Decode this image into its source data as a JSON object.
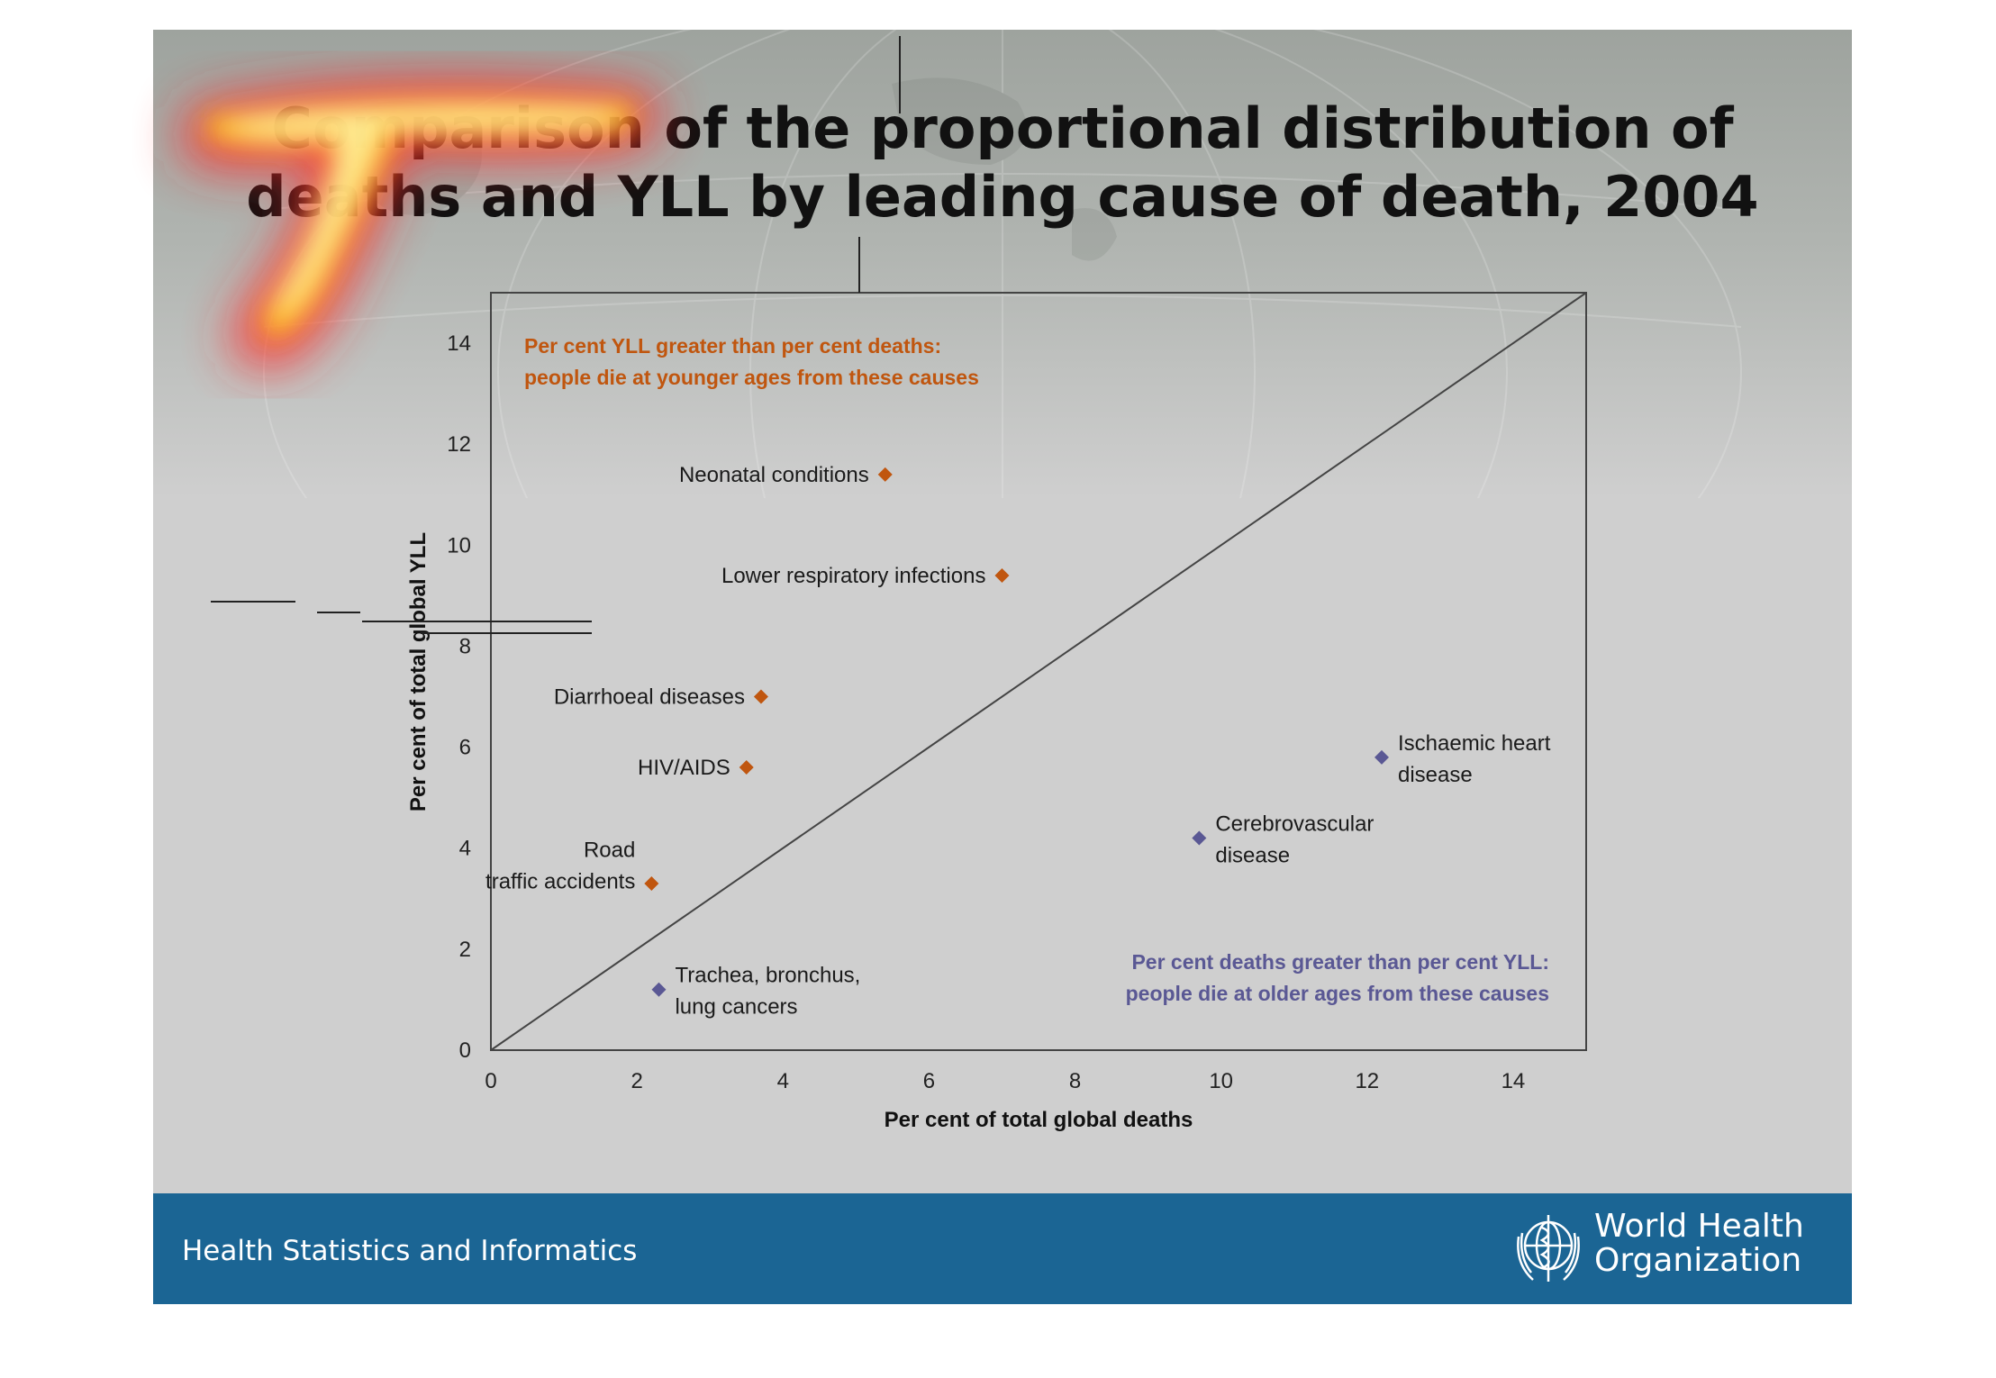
{
  "slide": {
    "title_line1": "Comparison of the proportional distribution of",
    "title_line2": "deaths and YLL by leading cause of death, 2004"
  },
  "footer": {
    "left_text": "Health Statistics and Informatics",
    "org_line1": "World Health",
    "org_line2": "Organization",
    "color": "#1b6594"
  },
  "chart_data": {
    "type": "scatter",
    "title": "Comparison of the proportional distribution of deaths and YLL by leading cause of death, 2004",
    "xlabel": "Per cent of total global deaths",
    "ylabel": "Per cent of total global YLL",
    "xlim": [
      0,
      15
    ],
    "ylim": [
      0,
      15
    ],
    "xticks": [
      0,
      2,
      4,
      6,
      8,
      10,
      12,
      14
    ],
    "yticks": [
      0,
      2,
      4,
      6,
      8,
      10,
      12,
      14
    ],
    "grid": false,
    "reference_line": {
      "from": [
        0,
        0
      ],
      "to": [
        15,
        15
      ]
    },
    "series": [
      {
        "color": "#c0560f",
        "points": [
          {
            "label": "Neonatal conditions",
            "x": 5.4,
            "y": 11.4
          },
          {
            "label": "Lower respiratory infections",
            "x": 7.0,
            "y": 9.4
          },
          {
            "label": "Diarrhoeal diseases",
            "x": 3.7,
            "y": 7.0
          },
          {
            "label": "HIV/AIDS",
            "x": 3.5,
            "y": 5.6
          },
          {
            "label": "Road traffic accidents",
            "x": 2.2,
            "y": 3.3
          }
        ]
      },
      {
        "color": "#5a5894",
        "points": [
          {
            "label": "Ischaemic heart disease",
            "x": 12.2,
            "y": 5.8
          },
          {
            "label": "Cerebrovascular disease",
            "x": 9.7,
            "y": 4.2
          },
          {
            "label": "Trachea, bronchus, lung cancers",
            "x": 2.3,
            "y": 1.2
          }
        ]
      }
    ],
    "annotations": [
      {
        "color": "#c0560f",
        "line1": "Per cent YLL greater than per cent deaths:",
        "line2": "people die at younger ages from these causes"
      },
      {
        "color": "#5a5894",
        "line1": "Per cent deaths greater than per cent YLL:",
        "line2": "people die at older ages from these causes"
      }
    ]
  }
}
